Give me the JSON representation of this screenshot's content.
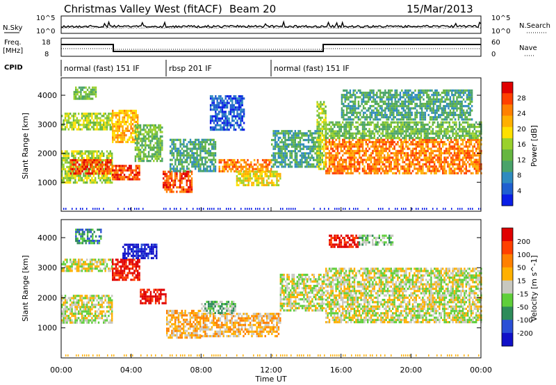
{
  "header": {
    "station": "Christmas Valley West (fitACF)",
    "beam": "Beam 20",
    "date": "15/Mar/2013"
  },
  "labels": {
    "nsky": "N.Sky",
    "nsearch": "N.Search",
    "freq_line1": "Freq.",
    "freq_line2": "[MHz]",
    "nave": "Nave",
    "cpid": "CPID",
    "nsky_ticks": [
      "10^5",
      "10^0"
    ],
    "nsearch_ticks": [
      "10^5",
      "10^0"
    ],
    "freq_ticks": [
      "18",
      "8"
    ],
    "nave_ticks": [
      "60",
      "0"
    ]
  },
  "cpid_segments": [
    {
      "start_h": 0,
      "end_h": 6,
      "label": "normal (fast) 151 IF"
    },
    {
      "start_h": 6,
      "end_h": 12,
      "label": "rbsp 201 IF"
    },
    {
      "start_h": 12,
      "end_h": 24,
      "label": "normal (fast) 151 IF"
    }
  ],
  "chart_data": [
    {
      "type": "heatmap",
      "panel": "power",
      "xlabel": "",
      "ylabel": "Slant Range [km]",
      "xlim": [
        0,
        24
      ],
      "ylim": [
        0,
        4600
      ],
      "yticks": [
        1000,
        2000,
        3000,
        4000
      ],
      "colorbar": {
        "label": "Power [dB]",
        "ticks": [
          "4",
          "8",
          "12",
          "16",
          "20",
          "24",
          "28"
        ],
        "colors": [
          "#0a1ee6",
          "#1f5fd0",
          "#2f8bbf",
          "#4aa36a",
          "#66b640",
          "#9ad12c",
          "#ffe000",
          "#ffb000",
          "#ff8000",
          "#ff4000",
          "#e00000"
        ]
      },
      "bands": [
        {
          "t0": 0.0,
          "t1": 2.9,
          "r0": 1000,
          "r1": 2100,
          "level": 5
        },
        {
          "t0": 0.5,
          "t1": 2.8,
          "r0": 1300,
          "r1": 1800,
          "level": 9
        },
        {
          "t0": 0.0,
          "t1": 2.9,
          "r0": 2800,
          "r1": 3400,
          "level": 5
        },
        {
          "t0": 0.7,
          "t1": 2.0,
          "r0": 3900,
          "r1": 4300,
          "level": 4
        },
        {
          "t0": 2.9,
          "t1": 4.5,
          "r0": 1100,
          "r1": 1600,
          "level": 9
        },
        {
          "t0": 2.9,
          "t1": 4.4,
          "r0": 2400,
          "r1": 3500,
          "level": 7
        },
        {
          "t0": 4.2,
          "t1": 5.8,
          "r0": 1700,
          "r1": 3000,
          "level": 4
        },
        {
          "t0": 5.8,
          "t1": 7.5,
          "r0": 700,
          "r1": 1400,
          "level": 9
        },
        {
          "t0": 6.2,
          "t1": 8.8,
          "r0": 1400,
          "r1": 2500,
          "level": 3
        },
        {
          "t0": 8.5,
          "t1": 10.5,
          "r0": 2800,
          "r1": 4000,
          "level": 1
        },
        {
          "t0": 9.0,
          "t1": 12.0,
          "r0": 1400,
          "r1": 1800,
          "level": 8
        },
        {
          "t0": 10.0,
          "t1": 12.5,
          "r0": 900,
          "r1": 1400,
          "level": 6
        },
        {
          "t0": 12.0,
          "t1": 14.8,
          "r0": 1500,
          "r1": 2800,
          "level": 3
        },
        {
          "t0": 14.6,
          "t1": 15.1,
          "r0": 1500,
          "r1": 3800,
          "level": 5
        },
        {
          "t0": 15.1,
          "t1": 24.0,
          "r0": 1300,
          "r1": 2500,
          "level": 8
        },
        {
          "t0": 15.1,
          "t1": 24.0,
          "r0": 2500,
          "r1": 3100,
          "level": 4
        },
        {
          "t0": 16.0,
          "t1": 23.5,
          "r0": 3200,
          "r1": 4200,
          "level": 3
        }
      ]
    },
    {
      "type": "heatmap",
      "panel": "velocity",
      "xlabel": "Time UT",
      "ylabel": "Slant Range [km]",
      "xlim": [
        0,
        24
      ],
      "ylim": [
        0,
        4600
      ],
      "yticks": [
        1000,
        2000,
        3000,
        4000
      ],
      "xticks": [
        "00:00",
        "04:00",
        "08:00",
        "12:00",
        "16:00",
        "20:00",
        "00:00"
      ],
      "colorbar": {
        "label": "Velocity [m s^-1]",
        "ticks": [
          "200",
          "100",
          "50",
          "15",
          "-15",
          "-50",
          "-100",
          "-200"
        ],
        "colors": [
          "#1010c8",
          "#2a4fd6",
          "#2e8c5a",
          "#5fcf3a",
          "#c8c8c0",
          "#ffb000",
          "#ff8000",
          "#ff4000",
          "#e00000"
        ]
      },
      "bands": [
        {
          "t0": 0.0,
          "t1": 2.9,
          "r0": 1200,
          "r1": 2100,
          "level": 4
        },
        {
          "t0": 0.0,
          "t1": 2.9,
          "r0": 2900,
          "r1": 3300,
          "level": 4
        },
        {
          "t0": 0.8,
          "t1": 2.3,
          "r0": 3800,
          "r1": 4300,
          "level": 2
        },
        {
          "t0": 2.9,
          "t1": 4.5,
          "r0": 2600,
          "r1": 3300,
          "level": 8
        },
        {
          "t0": 3.5,
          "t1": 5.5,
          "r0": 3300,
          "r1": 3800,
          "level": 0
        },
        {
          "t0": 4.5,
          "t1": 6.0,
          "r0": 1800,
          "r1": 2300,
          "level": 8
        },
        {
          "t0": 6.0,
          "t1": 8.0,
          "r0": 700,
          "r1": 1600,
          "level": 5
        },
        {
          "t0": 8.0,
          "t1": 12.5,
          "r0": 700,
          "r1": 1500,
          "level": 5
        },
        {
          "t0": 8.0,
          "t1": 10.0,
          "r0": 1500,
          "r1": 1900,
          "level": 3
        },
        {
          "t0": 12.5,
          "t1": 15.0,
          "r0": 1600,
          "r1": 2800,
          "level": 4
        },
        {
          "t0": 15.1,
          "t1": 24.0,
          "r0": 1200,
          "r1": 3000,
          "level": 4
        },
        {
          "t0": 15.3,
          "t1": 17.0,
          "r0": 3700,
          "r1": 4100,
          "level": 8
        },
        {
          "t0": 17.0,
          "t1": 19.0,
          "r0": 3800,
          "r1": 4100,
          "level": 3
        }
      ]
    }
  ]
}
